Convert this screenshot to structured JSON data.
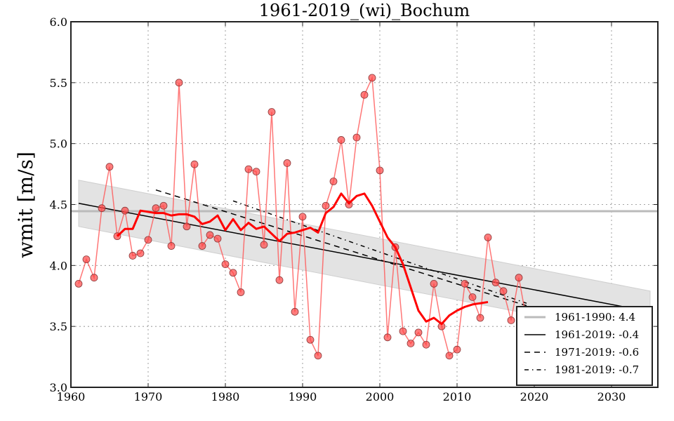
{
  "chart_data": {
    "type": "line",
    "title": "1961-2019_(wi)_Bochum",
    "xlabel": "",
    "ylabel": "wmit [m/s]",
    "xlim": [
      1960,
      2036
    ],
    "ylim": [
      3.0,
      6.0
    ],
    "xticks": [
      1960,
      1970,
      1980,
      1990,
      2000,
      2010,
      2020,
      2030
    ],
    "xtick_labels": [
      "1960",
      "1970",
      "1980",
      "1990",
      "2000",
      "2010",
      "2020",
      "2030"
    ],
    "yticks": [
      3.0,
      3.5,
      4.0,
      4.5,
      5.0,
      5.5,
      6.0
    ],
    "ytick_labels": [
      "3.0",
      "3.5",
      "4.0",
      "4.5",
      "5.0",
      "5.5",
      "6.0"
    ],
    "grid": true,
    "legend_position": "bottom-right",
    "colors": {
      "annual": "#ff5555",
      "rolling": "#ff0000",
      "mean_line": "#bbbbbb",
      "band": "#e3e3e3",
      "trend": "#000000"
    },
    "series": [
      {
        "name": "annual",
        "x": [
          1961,
          1962,
          1963,
          1964,
          1965,
          1966,
          1967,
          1968,
          1969,
          1970,
          1971,
          1972,
          1973,
          1974,
          1975,
          1976,
          1977,
          1978,
          1979,
          1980,
          1981,
          1982,
          1983,
          1984,
          1985,
          1986,
          1987,
          1988,
          1989,
          1990,
          1991,
          1992,
          1993,
          1994,
          1995,
          1996,
          1997,
          1998,
          1999,
          2000,
          2001,
          2002,
          2003,
          2004,
          2005,
          2006,
          2007,
          2008,
          2009,
          2010,
          2011,
          2012,
          2013,
          2014,
          2015,
          2016,
          2017,
          2018,
          2019
        ],
        "values": [
          3.85,
          4.05,
          3.9,
          4.47,
          4.81,
          4.24,
          4.45,
          4.08,
          4.1,
          4.21,
          4.47,
          4.49,
          4.16,
          5.5,
          4.32,
          4.83,
          4.16,
          4.25,
          4.22,
          4.01,
          3.94,
          3.78,
          4.79,
          4.77,
          4.17,
          5.26,
          3.88,
          4.84,
          3.62,
          4.4,
          3.39,
          3.26,
          4.49,
          4.69,
          5.03,
          4.5,
          5.05,
          5.4,
          5.54,
          4.78,
          3.41,
          4.15,
          3.46,
          3.36,
          3.45,
          3.35,
          3.85,
          3.5,
          3.26,
          3.31,
          3.85,
          3.74,
          3.57,
          4.23,
          3.86,
          3.79,
          3.55,
          3.9,
          3.55
        ]
      },
      {
        "name": "rolling mean",
        "x": [
          1966,
          1967,
          1968,
          1969,
          1970,
          1971,
          1972,
          1973,
          1974,
          1975,
          1976,
          1977,
          1978,
          1979,
          1980,
          1981,
          1982,
          1983,
          1984,
          1985,
          1986,
          1987,
          1988,
          1989,
          1990,
          1991,
          1992,
          1993,
          1994,
          1995,
          1996,
          1997,
          1998,
          1999,
          2000,
          2001,
          2002,
          2003,
          2004,
          2005,
          2006,
          2007,
          2008,
          2009,
          2010,
          2011,
          2012,
          2013,
          2014
        ],
        "values": [
          4.24,
          4.3,
          4.3,
          4.45,
          4.44,
          4.43,
          4.43,
          4.41,
          4.42,
          4.42,
          4.4,
          4.34,
          4.36,
          4.41,
          4.29,
          4.38,
          4.29,
          4.35,
          4.3,
          4.32,
          4.26,
          4.2,
          4.26,
          4.27,
          4.29,
          4.31,
          4.27,
          4.43,
          4.48,
          4.59,
          4.51,
          4.57,
          4.59,
          4.49,
          4.36,
          4.23,
          4.15,
          4.01,
          3.82,
          3.63,
          3.54,
          3.57,
          3.52,
          3.59,
          3.63,
          3.66,
          3.68,
          3.69,
          3.7
        ]
      },
      {
        "name": "1961-1990: 4.4",
        "kind": "mean",
        "x": [
          1960,
          2036
        ],
        "values": [
          4.445,
          4.445
        ]
      },
      {
        "name": "1961-2019: -0.4",
        "kind": "trend",
        "x": [
          1961,
          2035
        ],
        "values": [
          4.51,
          3.62
        ]
      },
      {
        "name": "1971-2019: -0.6",
        "kind": "trend-dashed",
        "x": [
          1971,
          2019
        ],
        "values": [
          4.62,
          3.67
        ]
      },
      {
        "name": "1981-2019: -0.7",
        "kind": "trend-dashdot",
        "x": [
          1981,
          2019
        ],
        "values": [
          4.53,
          3.69
        ]
      }
    ],
    "band": {
      "x": [
        1961,
        2035
      ],
      "upper": [
        4.7,
        3.79
      ],
      "lower": [
        4.32,
        3.41
      ]
    },
    "legend": [
      {
        "label": "1961-1990: 4.4",
        "style": "mean"
      },
      {
        "label": "1961-2019: -0.4",
        "style": "solid"
      },
      {
        "label": "1971-2019: -0.6",
        "style": "dashed"
      },
      {
        "label": "1981-2019: -0.7",
        "style": "dashdot"
      }
    ]
  }
}
